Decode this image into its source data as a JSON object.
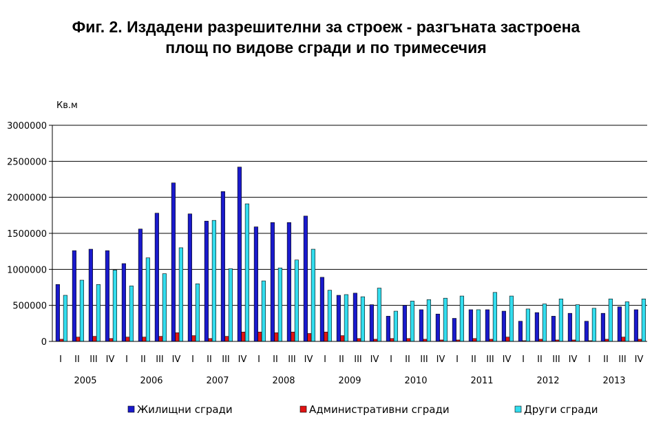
{
  "chart_data": {
    "type": "bar",
    "title": "Фиг. 2. Издадени разрешителни за строеж - разгъната застроена",
    "title_line2": "площ по видове сгради и по тримесечия",
    "ylabel": "Кв.м",
    "ylim": [
      0,
      3000000
    ],
    "yticks": [
      0,
      500000,
      1000000,
      1500000,
      2000000,
      2500000,
      3000000
    ],
    "grid": true,
    "legend_position": "bottom",
    "quarter_labels": [
      "I",
      "II",
      "III",
      "IV"
    ],
    "years": [
      "2005",
      "2006",
      "2007",
      "2008",
      "2009",
      "2010",
      "2011",
      "2012",
      "2013"
    ],
    "series": [
      {
        "name": "Жилищни сгради",
        "color": "#1a1acc",
        "values": [
          790000,
          1260000,
          1280000,
          1260000,
          1080000,
          1560000,
          1780000,
          2200000,
          1770000,
          1670000,
          2080000,
          2420000,
          1590000,
          1650000,
          1650000,
          1740000,
          890000,
          640000,
          670000,
          510000,
          350000,
          500000,
          440000,
          380000,
          320000,
          440000,
          440000,
          420000,
          280000,
          400000,
          350000,
          390000,
          280000,
          390000,
          480000,
          440000
        ]
      },
      {
        "name": "Административни сгради",
        "color": "#e01414",
        "values": [
          30000,
          60000,
          70000,
          40000,
          60000,
          60000,
          70000,
          120000,
          80000,
          40000,
          70000,
          130000,
          130000,
          120000,
          130000,
          110000,
          130000,
          80000,
          40000,
          30000,
          40000,
          40000,
          30000,
          20000,
          20000,
          40000,
          30000,
          60000,
          10000,
          30000,
          20000,
          20000,
          10000,
          30000,
          60000,
          30000
        ]
      },
      {
        "name": "Други сгради",
        "color": "#33ddee",
        "values": [
          640000,
          850000,
          790000,
          990000,
          770000,
          1160000,
          940000,
          1300000,
          800000,
          1680000,
          1010000,
          1910000,
          840000,
          1020000,
          1130000,
          1280000,
          710000,
          650000,
          620000,
          740000,
          420000,
          560000,
          580000,
          600000,
          630000,
          440000,
          680000,
          630000,
          450000,
          520000,
          590000,
          510000,
          460000,
          590000,
          550000,
          590000
        ]
      }
    ]
  }
}
